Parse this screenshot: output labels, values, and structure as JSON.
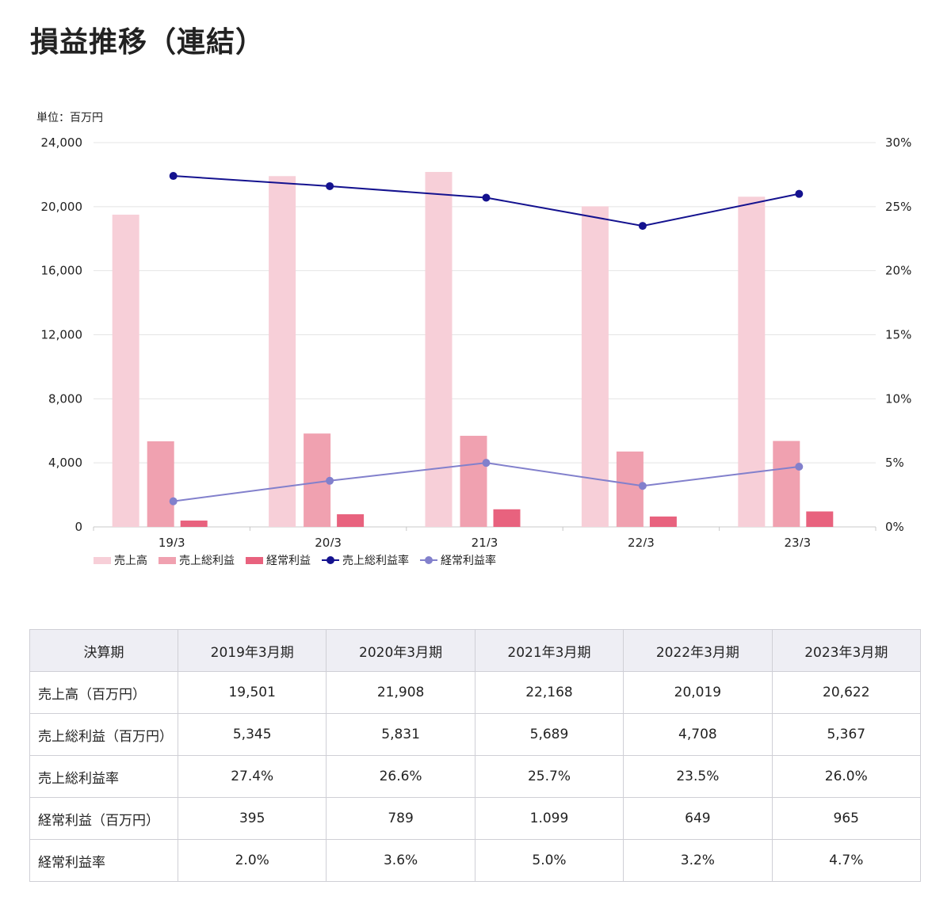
{
  "title": "損益推移（連結）",
  "unit_label": "単位：百万円",
  "chart_data": {
    "type": "bar",
    "categories": [
      "19/3",
      "20/3",
      "21/3",
      "22/3",
      "23/3"
    ],
    "left_axis": {
      "ylim": [
        0,
        24000
      ],
      "ticks": [
        "0",
        "4,000",
        "8,000",
        "12,000",
        "16,000",
        "20,000",
        "24,000"
      ]
    },
    "right_axis": {
      "ylim": [
        0,
        30
      ],
      "ticks": [
        "0%",
        "5%",
        "10%",
        "15%",
        "20%",
        "25%",
        "30%"
      ]
    },
    "series": [
      {
        "name": "売上高",
        "type": "bar",
        "axis": "left",
        "color": "#f7cfd8",
        "values": [
          19501,
          21908,
          22168,
          20019,
          20622
        ]
      },
      {
        "name": "売上総利益",
        "type": "bar",
        "axis": "left",
        "color": "#f0a1b0",
        "values": [
          5345,
          5831,
          5689,
          4708,
          5367
        ]
      },
      {
        "name": "経常利益",
        "type": "bar",
        "axis": "left",
        "color": "#e8627e",
        "values": [
          395,
          789,
          1099,
          649,
          965
        ]
      },
      {
        "name": "売上総利益率",
        "type": "line",
        "axis": "right",
        "color": "#14128f",
        "values": [
          27.4,
          26.6,
          25.7,
          23.5,
          26.0
        ]
      },
      {
        "name": "経常利益率",
        "type": "line",
        "axis": "right",
        "color": "#8280cc",
        "values": [
          2.0,
          3.6,
          5.0,
          3.2,
          4.7
        ]
      }
    ],
    "grid": true,
    "legend_position": "bottom-left"
  },
  "table": {
    "headers": [
      "決算期",
      "2019年3月期",
      "2020年3月期",
      "2021年3月期",
      "2022年3月期",
      "2023年3月期"
    ],
    "rows": [
      {
        "label": "売上高（百万円）",
        "cells": [
          "19,501",
          "21,908",
          "22,168",
          "20,019",
          "20,622"
        ]
      },
      {
        "label": "売上総利益（百万円）",
        "cells": [
          "5,345",
          "5,831",
          "5,689",
          "4,708",
          "5,367"
        ]
      },
      {
        "label": "売上総利益率",
        "cells": [
          "27.4%",
          "26.6%",
          "25.7%",
          "23.5%",
          "26.0%"
        ]
      },
      {
        "label": "経常利益（百万円）",
        "cells": [
          "395",
          "789",
          "1.099",
          "649",
          "965"
        ]
      },
      {
        "label": "経常利益率",
        "cells": [
          "2.0%",
          "3.6%",
          "5.0%",
          "3.2%",
          "4.7%"
        ]
      }
    ]
  }
}
